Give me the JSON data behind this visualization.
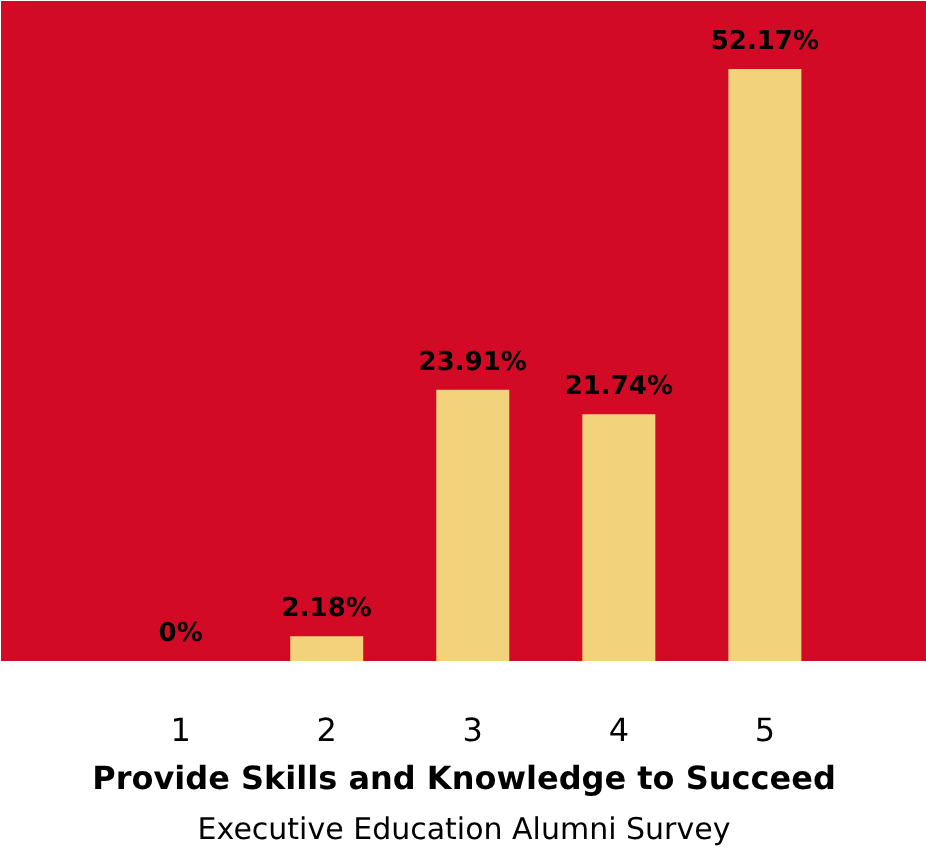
{
  "chart_data": {
    "type": "bar",
    "xlabel": "Provide Skills and Knowledge to Succeed",
    "subtitle": "Executive Education Alumni Survey",
    "categories": [
      "1",
      "2",
      "3",
      "4",
      "5"
    ],
    "values": [
      0,
      2.18,
      23.91,
      21.74,
      52.17
    ],
    "value_labels": [
      "0%",
      "2.18%",
      "23.91%",
      "21.74%",
      "52.17%"
    ],
    "color": "#f2d27a",
    "grid": false
  }
}
